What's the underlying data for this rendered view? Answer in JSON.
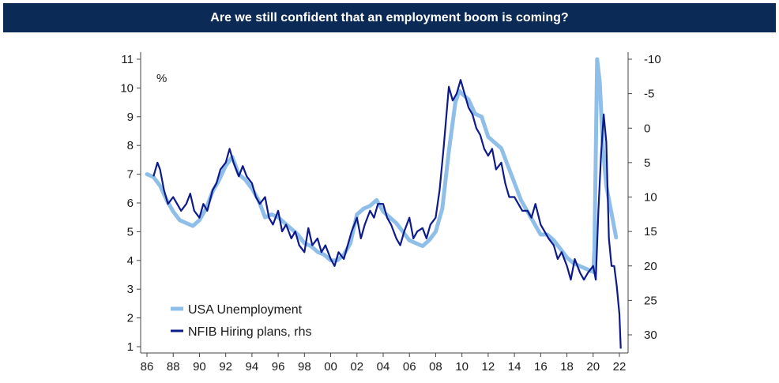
{
  "page": {
    "title": "Are we still confident that an employment boom is coming?"
  },
  "chart_data": {
    "type": "line",
    "title": "Are we still confident that an employment boom is coming?",
    "ylabel_left": "%",
    "xlim": [
      1986,
      2022.5
    ],
    "ylim_left": [
      1,
      11
    ],
    "ylim_right_inverted": [
      -10,
      32
    ],
    "x_ticks": [
      "86",
      "88",
      "90",
      "92",
      "94",
      "96",
      "98",
      "00",
      "02",
      "04",
      "06",
      "08",
      "10",
      "12",
      "14",
      "16",
      "18",
      "20",
      "22"
    ],
    "y_ticks_left": [
      "1",
      "2",
      "3",
      "4",
      "5",
      "6",
      "7",
      "8",
      "9",
      "10",
      "11"
    ],
    "y_ticks_right": [
      "-10",
      "-5",
      "0",
      "5",
      "10",
      "15",
      "20",
      "25",
      "30"
    ],
    "legend": {
      "placement": "bottom-left",
      "entries": [
        "USA Unemployment",
        "NFIB Hiring plans, rhs"
      ]
    },
    "colors": {
      "unemployment": "#8fbfe8",
      "hiring": "#0d1a8a",
      "banner": "#0b2a55",
      "axis": "#444444"
    },
    "series": [
      {
        "name": "USA Unemployment",
        "axis": "left",
        "x": [
          1986.0,
          1986.5,
          1987.0,
          1987.5,
          1988.0,
          1988.5,
          1989.0,
          1989.5,
          1990.0,
          1990.5,
          1991.0,
          1991.5,
          1992.0,
          1992.5,
          1993.0,
          1993.5,
          1994.0,
          1994.5,
          1995.0,
          1995.5,
          1996.0,
          1996.5,
          1997.0,
          1997.5,
          1998.0,
          1998.5,
          1999.0,
          1999.5,
          2000.0,
          2000.5,
          2001.0,
          2001.5,
          2002.0,
          2002.5,
          2003.0,
          2003.5,
          2004.0,
          2004.5,
          2005.0,
          2005.5,
          2006.0,
          2006.5,
          2007.0,
          2007.5,
          2008.0,
          2008.5,
          2009.0,
          2009.5,
          2009.8,
          2010.0,
          2010.5,
          2011.0,
          2011.5,
          2012.0,
          2012.5,
          2013.0,
          2013.5,
          2014.0,
          2014.5,
          2015.0,
          2015.5,
          2016.0,
          2016.5,
          2017.0,
          2017.5,
          2018.0,
          2018.5,
          2019.0,
          2019.5,
          2020.0,
          2020.1,
          2020.3,
          2020.5,
          2020.75,
          2021.0,
          2021.25,
          2021.5,
          2021.75
        ],
        "values": [
          7.0,
          6.9,
          6.6,
          6.1,
          5.7,
          5.4,
          5.3,
          5.2,
          5.4,
          5.8,
          6.4,
          6.8,
          7.3,
          7.6,
          7.0,
          6.8,
          6.5,
          6.1,
          5.5,
          5.6,
          5.5,
          5.3,
          5.1,
          4.9,
          4.6,
          4.5,
          4.3,
          4.2,
          4.0,
          4.0,
          4.2,
          4.6,
          5.6,
          5.8,
          5.9,
          6.1,
          5.7,
          5.5,
          5.3,
          5.0,
          4.7,
          4.6,
          4.5,
          4.7,
          5.0,
          5.8,
          7.8,
          9.5,
          9.9,
          9.8,
          9.6,
          9.1,
          9.0,
          8.3,
          8.1,
          7.9,
          7.3,
          6.7,
          6.1,
          5.7,
          5.3,
          4.9,
          4.9,
          4.7,
          4.4,
          4.1,
          3.9,
          3.8,
          3.7,
          3.6,
          4.4,
          11.0,
          10.2,
          7.9,
          6.6,
          6.0,
          5.4,
          4.8
        ]
      },
      {
        "name": "NFIB Hiring plans, rhs",
        "axis": "right",
        "x": [
          1986.5,
          1986.8,
          1987.0,
          1987.3,
          1987.6,
          1988.0,
          1988.3,
          1988.6,
          1989.0,
          1989.3,
          1989.6,
          1990.0,
          1990.3,
          1990.6,
          1991.0,
          1991.3,
          1991.6,
          1992.0,
          1992.3,
          1992.6,
          1993.0,
          1993.3,
          1993.6,
          1994.0,
          1994.3,
          1994.6,
          1995.0,
          1995.3,
          1995.6,
          1996.0,
          1996.3,
          1996.6,
          1997.0,
          1997.3,
          1997.6,
          1998.0,
          1998.3,
          1998.6,
          1999.0,
          1999.3,
          1999.6,
          2000.0,
          2000.3,
          2000.6,
          2001.0,
          2001.3,
          2001.6,
          2002.0,
          2002.3,
          2002.6,
          2003.0,
          2003.3,
          2003.6,
          2004.0,
          2004.3,
          2004.6,
          2005.0,
          2005.3,
          2005.6,
          2006.0,
          2006.3,
          2006.6,
          2007.0,
          2007.3,
          2007.6,
          2008.0,
          2008.3,
          2008.6,
          2009.0,
          2009.3,
          2009.6,
          2009.9,
          2010.2,
          2010.5,
          2010.8,
          2011.1,
          2011.4,
          2011.7,
          2012.0,
          2012.3,
          2012.6,
          2013.0,
          2013.3,
          2013.6,
          2014.0,
          2014.3,
          2014.6,
          2015.0,
          2015.3,
          2015.6,
          2016.0,
          2016.3,
          2016.6,
          2017.0,
          2017.3,
          2017.6,
          2018.0,
          2018.3,
          2018.6,
          2019.0,
          2019.3,
          2019.6,
          2020.0,
          2020.2,
          2020.4,
          2020.6,
          2020.8,
          2021.0,
          2021.2,
          2021.4,
          2021.6,
          2021.8,
          2022.0,
          2022.1
        ],
        "values": [
          7.0,
          5.0,
          6.0,
          9.0,
          11.0,
          10.0,
          11.0,
          12.0,
          11.0,
          9.5,
          12.0,
          13.0,
          11.0,
          12.0,
          9.0,
          8.0,
          6.0,
          5.0,
          3.0,
          5.0,
          7.0,
          5.5,
          7.0,
          8.0,
          10.0,
          11.0,
          10.0,
          13.0,
          14.0,
          12.0,
          15.0,
          14.0,
          16.0,
          15.0,
          17.0,
          18.0,
          14.5,
          17.0,
          16.0,
          18.0,
          17.0,
          19.0,
          20.0,
          18.0,
          19.0,
          17.0,
          15.0,
          13.0,
          16.0,
          14.0,
          12.0,
          13.0,
          11.0,
          11.0,
          13.0,
          14.0,
          16.0,
          17.0,
          15.0,
          13.0,
          16.0,
          15.0,
          14.5,
          16.0,
          14.0,
          13.0,
          9.0,
          3.0,
          -6.0,
          -4.0,
          -5.0,
          -7.0,
          -5.0,
          -3.0,
          -2.0,
          0.0,
          1.0,
          3.0,
          4.0,
          3.0,
          6.0,
          5.0,
          8.0,
          10.0,
          10.0,
          11.0,
          12.0,
          12.0,
          13.0,
          11.0,
          14.0,
          15.0,
          16.0,
          17.0,
          19.0,
          18.0,
          20.0,
          22.0,
          19.0,
          21.0,
          22.0,
          21.0,
          20.0,
          22.0,
          12.0,
          4.0,
          -2.0,
          2.0,
          16.0,
          20.0,
          20.0,
          23.0,
          27.0,
          32.0
        ]
      }
    ]
  }
}
